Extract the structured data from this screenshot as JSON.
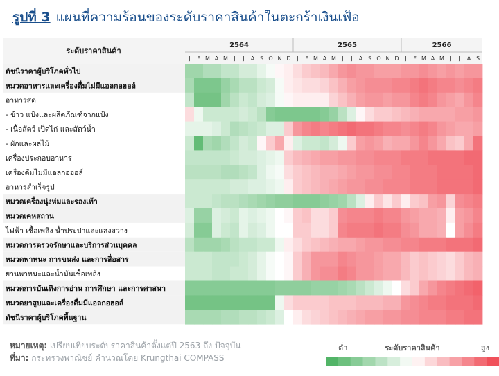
{
  "title": {
    "fig": "รูปที่ 3",
    "text": "แผนที่ความร้อนของระดับราคาสินค้าในตะกร้าเงินเฟ้อ"
  },
  "footer": {
    "note_label": "หมายเหตุ:",
    "note_text": "เปรียบเทียบระดับราคาสินค้าตั้งแต่ปี 2563 ถึง ปัจจุบัน",
    "source_label": "ที่มา:",
    "source_text": "กระทรวงพาณิชย์ คำนวณโดย Krungthai COMPASS"
  },
  "legend": {
    "low": "ต่ำ",
    "title": "ระดับราคาสินค้า",
    "high": "สูง"
  },
  "colors": {
    "low": "#52b467",
    "mid": "#ffffff",
    "high": "#f0505a",
    "row_shade": "#f2f2f2",
    "title": "#1a4f8c"
  },
  "chart_data": {
    "type": "heatmap",
    "corner_label": "ระดับราคาสินค้า",
    "years": [
      {
        "label": "2564",
        "months": 12
      },
      {
        "label": "2565",
        "months": 12
      },
      {
        "label": "2566",
        "months": 9
      }
    ],
    "month_labels": [
      "J",
      "F",
      "M",
      "A",
      "M",
      "J",
      "J",
      "A",
      "S",
      "O",
      "N",
      "D",
      "J",
      "F",
      "M",
      "A",
      "M",
      "J",
      "J",
      "A",
      "S",
      "O",
      "N",
      "D",
      "J",
      "F",
      "M",
      "A",
      "M",
      "J",
      "J",
      "A",
      "S"
    ],
    "scale": {
      "min": -1,
      "max": 1
    },
    "rows": [
      {
        "label": "ดัชนีราคาผู้บริโภคทั่วไป",
        "bold": true,
        "shaded": true,
        "values": [
          -0.55,
          -0.55,
          -0.45,
          -0.45,
          -0.35,
          -0.35,
          -0.25,
          -0.25,
          -0.15,
          -0.05,
          0.05,
          0.1,
          0.2,
          0.3,
          0.35,
          0.4,
          0.5,
          0.6,
          0.65,
          0.6,
          0.6,
          0.55,
          0.55,
          0.55,
          0.6,
          0.6,
          0.65,
          0.6,
          0.55,
          0.6,
          0.55,
          0.6,
          0.6
        ]
      },
      {
        "label": "หมวดอาหารและเครื่องดื่มไม่มีแอลกอฮอล์",
        "bold": true,
        "shaded": true,
        "values": [
          -0.5,
          -0.75,
          -0.75,
          -0.75,
          -0.6,
          -0.5,
          -0.4,
          -0.4,
          -0.3,
          -0.25,
          -0.05,
          0.1,
          0.15,
          0.2,
          0.2,
          0.25,
          0.35,
          0.45,
          0.55,
          0.6,
          0.65,
          0.65,
          0.65,
          0.7,
          0.7,
          0.75,
          0.8,
          0.75,
          0.7,
          0.7,
          0.65,
          0.7,
          0.75
        ]
      },
      {
        "label": "อาหารสด",
        "bold": false,
        "shaded": false,
        "values": [
          -0.35,
          -0.8,
          -0.8,
          -0.8,
          -0.55,
          -0.4,
          -0.3,
          -0.35,
          -0.25,
          -0.2,
          -0.05,
          0.05,
          0.1,
          0.1,
          0.1,
          0.1,
          0.25,
          0.35,
          0.45,
          0.55,
          0.6,
          0.6,
          0.55,
          0.6,
          0.6,
          0.7,
          0.75,
          0.7,
          0.6,
          0.55,
          0.5,
          0.6,
          0.7
        ]
      },
      {
        "label": "- ข้าว แป้งและผลิตภัณฑ์จากแป้ง",
        "bold": false,
        "shaded": false,
        "values": [
          0.2,
          -0.1,
          -0.3,
          -0.3,
          -0.3,
          -0.3,
          -0.25,
          -0.3,
          -0.4,
          -0.7,
          -0.75,
          -0.75,
          -0.75,
          -0.75,
          -0.75,
          -0.7,
          -0.6,
          -0.4,
          -0.2,
          0.05,
          0.2,
          0.3,
          0.3,
          0.35,
          0.4,
          0.45,
          0.5,
          0.5,
          0.5,
          0.5,
          0.55,
          0.55,
          0.6
        ]
      },
      {
        "label": "- เนื้อสัตว์ เป็ดไก่ และสัตว์น้ำ",
        "bold": false,
        "shaded": false,
        "values": [
          -0.15,
          -0.15,
          -0.15,
          -0.2,
          -0.3,
          -0.45,
          -0.4,
          -0.35,
          -0.3,
          -0.2,
          -0.2,
          0.3,
          0.6,
          0.7,
          0.75,
          0.7,
          0.75,
          0.8,
          0.85,
          0.8,
          0.8,
          0.75,
          0.7,
          0.7,
          0.65,
          0.7,
          0.75,
          0.7,
          0.6,
          0.55,
          0.5,
          0.5,
          0.55
        ]
      },
      {
        "label": "- ผักและผลไม้",
        "bold": false,
        "shaded": false,
        "values": [
          -0.3,
          -0.9,
          -0.5,
          -0.55,
          -0.45,
          -0.35,
          -0.25,
          -0.3,
          0.05,
          0.3,
          0.5,
          0.1,
          -0.2,
          -0.3,
          -0.3,
          -0.35,
          -0.25,
          -0.1,
          0.3,
          0.55,
          0.6,
          0.55,
          0.45,
          0.5,
          0.5,
          0.6,
          0.7,
          0.6,
          0.5,
          0.35,
          0.3,
          0.5,
          0.8
        ]
      },
      {
        "label": "เครื่องประกอบอาหาร",
        "bold": false,
        "shaded": false,
        "values": [
          -0.35,
          -0.35,
          -0.35,
          -0.35,
          -0.35,
          -0.3,
          -0.25,
          -0.25,
          -0.2,
          -0.15,
          -0.1,
          0.3,
          0.4,
          0.45,
          0.5,
          0.55,
          0.55,
          0.6,
          0.6,
          0.65,
          0.65,
          0.7,
          0.7,
          0.7,
          0.75,
          0.75,
          0.75,
          0.8,
          0.8,
          0.8,
          0.8,
          0.85,
          0.85
        ]
      },
      {
        "label": "เครื่องดื่มไม่มีแอลกอฮอล์",
        "bold": false,
        "shaded": false,
        "values": [
          -0.4,
          -0.4,
          -0.4,
          -0.4,
          -0.45,
          -0.45,
          -0.4,
          -0.35,
          -0.2,
          -0.1,
          -0.05,
          0.2,
          0.3,
          0.35,
          0.4,
          0.45,
          0.45,
          0.5,
          0.55,
          0.6,
          0.6,
          0.65,
          0.65,
          0.7,
          0.7,
          0.75,
          0.75,
          0.75,
          0.8,
          0.8,
          0.8,
          0.8,
          0.85
        ]
      },
      {
        "label": "อาหารสำเร็จรูป",
        "bold": false,
        "shaded": false,
        "values": [
          -0.3,
          -0.3,
          -0.3,
          -0.3,
          -0.3,
          -0.25,
          -0.25,
          -0.2,
          -0.2,
          -0.15,
          -0.1,
          0.1,
          0.3,
          0.35,
          0.4,
          0.45,
          0.5,
          0.55,
          0.6,
          0.6,
          0.65,
          0.65,
          0.7,
          0.7,
          0.7,
          0.75,
          0.75,
          0.75,
          0.8,
          0.8,
          0.8,
          0.8,
          0.85
        ]
      },
      {
        "label": "หมวดเครื่องนุ่งห่มและรองเท้า",
        "bold": true,
        "shaded": true,
        "values": [
          -0.3,
          -0.3,
          -0.3,
          -0.35,
          -0.4,
          -0.4,
          -0.45,
          -0.5,
          -0.55,
          -0.6,
          -0.65,
          -0.65,
          -0.7,
          -0.7,
          -0.7,
          -0.65,
          -0.6,
          -0.55,
          -0.4,
          -0.2,
          0.1,
          0.3,
          0.15,
          0.3,
          0.1,
          0.3,
          0.35,
          0.55,
          0.6,
          0.25,
          0.65,
          0.7,
          0.75
        ]
      },
      {
        "label": "หมวดเคหสถาน",
        "bold": true,
        "shaded": true,
        "values": [
          -0.2,
          -0.6,
          -0.6,
          -0.2,
          -0.25,
          -0.3,
          -0.15,
          -0.2,
          -0.15,
          -0.1,
          0,
          0.05,
          0.3,
          0.35,
          0.2,
          0.2,
          0.3,
          0.65,
          0.7,
          0.7,
          0.7,
          0.75,
          0.7,
          0.7,
          0.6,
          0.55,
          0.5,
          0.5,
          0.45,
          0.1,
          0.55,
          0.6,
          0.7
        ]
      },
      {
        "label": "ไฟฟ้า เชื้อเพลิง น้ำประปาและแสงสว่าง",
        "bold": false,
        "shaded": false,
        "values": [
          -0.25,
          -0.7,
          -0.7,
          -0.2,
          -0.3,
          -0.35,
          -0.15,
          -0.25,
          -0.2,
          -0.1,
          0,
          0,
          0.3,
          0.3,
          0.2,
          0.2,
          0.3,
          0.7,
          0.75,
          0.75,
          0.75,
          0.8,
          0.75,
          0.75,
          0.65,
          0.6,
          0.5,
          0.5,
          0.45,
          0,
          0.55,
          0.65,
          0.75
        ]
      },
      {
        "label": "หมวดการตรวจรักษาและบริการส่วนบุคคล",
        "bold": true,
        "shaded": true,
        "values": [
          -0.4,
          -0.55,
          -0.55,
          -0.55,
          -0.5,
          -0.4,
          -0.35,
          -0.35,
          -0.3,
          -0.3,
          -0.1,
          0.1,
          0.2,
          0.3,
          0.35,
          0.4,
          0.45,
          0.5,
          0.5,
          0.55,
          0.6,
          0.6,
          0.65,
          0.65,
          0.7,
          0.7,
          0.75,
          0.75,
          0.75,
          0.8,
          0.8,
          0.8,
          0.85
        ]
      },
      {
        "label": "หมวดพาหนะ การขนส่ง และการสื่อสาร",
        "bold": true,
        "shaded": true,
        "values": [
          -0.3,
          -0.3,
          -0.3,
          -0.35,
          -0.35,
          -0.35,
          -0.3,
          -0.25,
          -0.15,
          -0.05,
          0,
          0.05,
          0.3,
          0.45,
          0.6,
          0.6,
          0.6,
          0.7,
          0.65,
          0.6,
          0.6,
          0.55,
          0.5,
          0.5,
          0.4,
          0.3,
          0.35,
          0.3,
          0.25,
          0.2,
          0.3,
          0.4,
          0.45
        ]
      },
      {
        "label": "ยานพาหนะและน้ำมันเชื้อเพลิง",
        "bold": false,
        "shaded": false,
        "values": [
          -0.3,
          -0.3,
          -0.3,
          -0.35,
          -0.35,
          -0.3,
          -0.3,
          -0.25,
          -0.15,
          -0.05,
          0,
          0.05,
          0.3,
          0.45,
          0.6,
          0.65,
          0.65,
          0.75,
          0.7,
          0.6,
          0.6,
          0.55,
          0.5,
          0.5,
          0.4,
          0.3,
          0.35,
          0.3,
          0.25,
          0.2,
          0.3,
          0.4,
          0.45
        ]
      },
      {
        "label": "หมวดการบันเทิงการอ่าน การศึกษา และการศาสนา",
        "bold": true,
        "shaded": true,
        "values": [
          -0.7,
          -0.7,
          -0.7,
          -0.7,
          -0.7,
          -0.7,
          -0.7,
          -0.7,
          -0.7,
          -0.7,
          -0.65,
          -0.65,
          -0.65,
          -0.65,
          -0.6,
          -0.6,
          -0.6,
          -0.55,
          -0.5,
          -0.4,
          -0.3,
          -0.2,
          -0.1,
          0,
          0.2,
          0.3,
          0.5,
          0.6,
          0.7,
          0.75,
          0.8,
          0.85,
          0.9
        ]
      },
      {
        "label": "หมวดยาสูบและเครื่องดื่มมีแอลกอฮอล์",
        "bold": true,
        "shaded": true,
        "values": [
          -0.8,
          -0.8,
          -0.8,
          -0.8,
          -0.8,
          -0.8,
          -0.8,
          -0.8,
          -0.8,
          -0.8,
          -0.1,
          0.2,
          0.3,
          0.3,
          0.3,
          0.3,
          0.35,
          0.35,
          0.35,
          0.4,
          0.4,
          0.4,
          0.45,
          0.45,
          0.6,
          0.65,
          0.7,
          0.75,
          0.75,
          0.8,
          0.8,
          0.8,
          0.85
        ]
      },
      {
        "label": "ดัชนีราคาผู้บริโภคพื้นฐาน",
        "bold": true,
        "shaded": true,
        "values": [
          -0.5,
          -0.5,
          -0.5,
          -0.5,
          -0.45,
          -0.45,
          -0.4,
          -0.4,
          -0.35,
          -0.3,
          -0.2,
          0,
          0.1,
          0.2,
          0.25,
          0.3,
          0.35,
          0.4,
          0.45,
          0.5,
          0.55,
          0.55,
          0.6,
          0.6,
          0.65,
          0.65,
          0.7,
          0.7,
          0.7,
          0.75,
          0.75,
          0.8,
          0.8
        ]
      }
    ]
  }
}
